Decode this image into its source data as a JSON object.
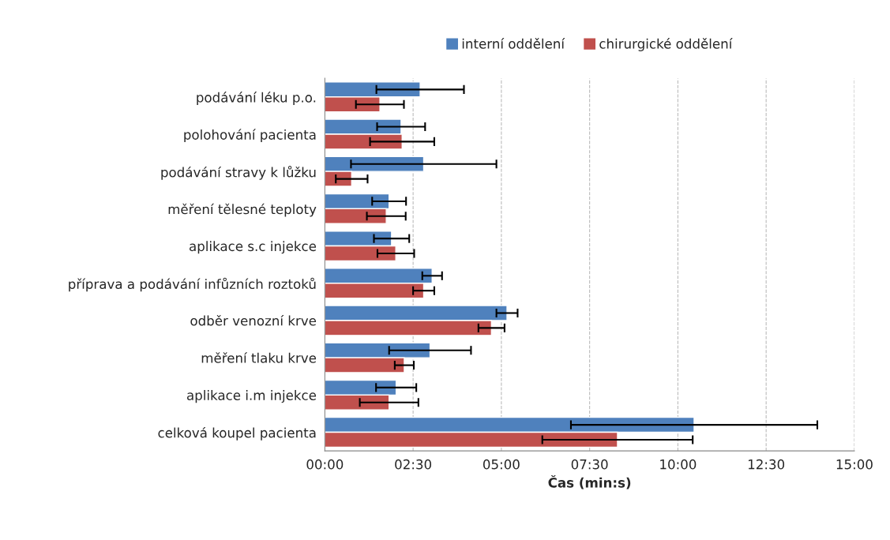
{
  "chart_data": {
    "type": "bar",
    "orientation": "horizontal",
    "xlabel": "Čas (min:s)",
    "categories": [
      "podávání léku p.o.",
      "polohování pacienta",
      "podávání stravy k lůžku",
      "měření tělesné teploty",
      "aplikace s.c injekce",
      "příprava a podávání infůzních roztoků",
      "odběr venozní krve",
      "měření tlaku krve",
      "aplikace i.m injekce",
      "celková koupel pacienta"
    ],
    "series": [
      {
        "name": "interní oddělení",
        "color": "#4f81bd",
        "values": [
          2.7,
          2.16,
          2.8,
          1.82,
          1.89,
          3.04,
          5.16,
          2.98,
          2.02,
          10.46
        ],
        "errors": [
          1.24,
          0.68,
          2.06,
          0.48,
          0.5,
          0.28,
          0.3,
          1.16,
          0.57,
          3.49
        ]
      },
      {
        "name": "chirurgické oddělení",
        "color": "#c0504d",
        "values": [
          1.56,
          2.19,
          0.76,
          1.74,
          2.01,
          2.8,
          4.72,
          2.25,
          1.82,
          8.29
        ],
        "errors": [
          0.68,
          0.91,
          0.45,
          0.55,
          0.52,
          0.3,
          0.37,
          0.27,
          0.83,
          2.13
        ]
      }
    ],
    "xlim": [
      0,
      15
    ],
    "xticks": [
      {
        "value": 0,
        "label": "00:00"
      },
      {
        "value": 2.5,
        "label": "02:30"
      },
      {
        "value": 5,
        "label": "05:00"
      },
      {
        "value": 7.5,
        "label": "07:30"
      },
      {
        "value": 10,
        "label": "10:00"
      },
      {
        "value": 12.5,
        "label": "12:30"
      },
      {
        "value": 15,
        "label": "15:00"
      }
    ],
    "grid": "x",
    "legend": "top"
  }
}
